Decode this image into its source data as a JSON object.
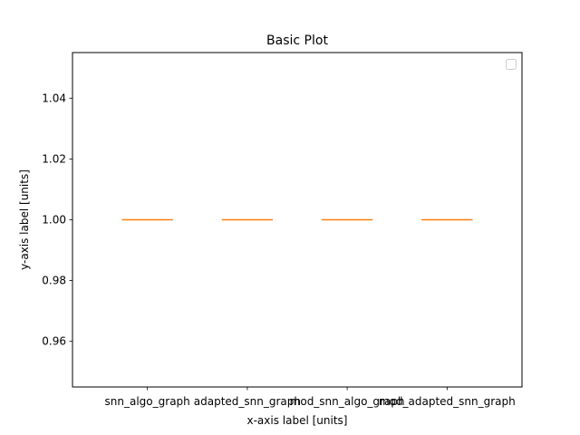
{
  "chart_data": {
    "type": "box",
    "title": "Basic Plot",
    "xlabel": "x-axis label [units]",
    "ylabel": "y-axis label [units]",
    "categories": [
      "snn_algo_graph",
      "adapted_snn_graph",
      "mod_snn_algo_graph",
      "mod_adapted_snn_graph"
    ],
    "values": [
      1.0,
      1.0,
      1.0,
      1.0
    ],
    "ylim": [
      0.945,
      1.055
    ],
    "yticks": [
      0.96,
      0.98,
      1.0,
      1.02,
      1.04
    ],
    "ytick_labels": [
      "0.96",
      "0.98",
      "1.00",
      "1.02",
      "1.04"
    ],
    "grid": false,
    "legend": {
      "placement": "top-right",
      "entries": []
    },
    "colors": {
      "box": "#000000",
      "median": "#ff7f0e"
    }
  }
}
